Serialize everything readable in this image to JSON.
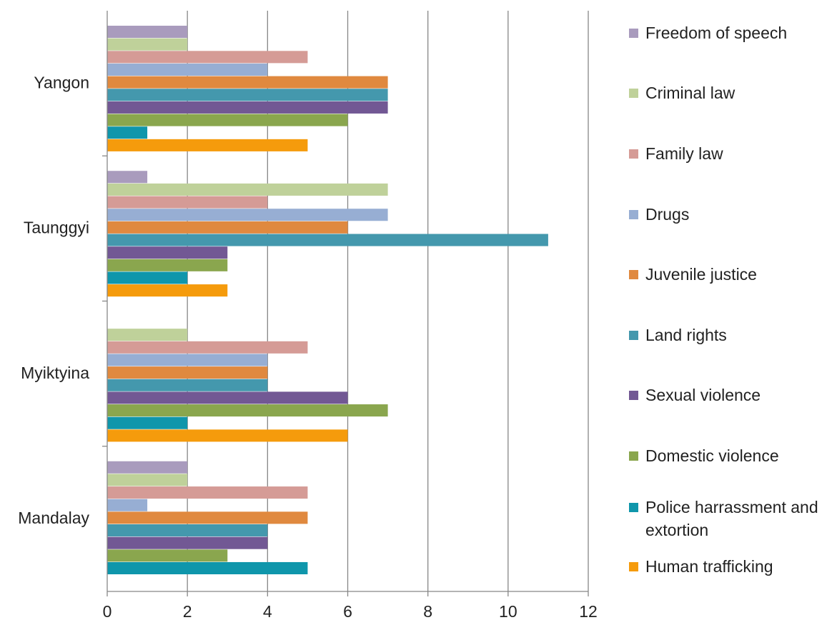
{
  "chart_data": {
    "type": "bar",
    "orientation": "horizontal",
    "title": "",
    "xlabel": "",
    "ylabel": "",
    "xlim": [
      0,
      12
    ],
    "x_ticks": [
      "0",
      "2",
      "4",
      "6",
      "8",
      "10",
      "12"
    ],
    "grid": "vertical",
    "legend_position": "right",
    "categories": [
      "Yangon",
      "Taunggyi",
      "Myiktyina",
      "Mandalay"
    ],
    "series": [
      {
        "name": "Freedom of speech",
        "color": "#a99bbd",
        "values": [
          2,
          1,
          0,
          2
        ]
      },
      {
        "name": "Criminal law",
        "color": "#bfd19a",
        "values": [
          2,
          7,
          2,
          2
        ]
      },
      {
        "name": "Family law",
        "color": "#d59b96",
        "values": [
          5,
          4,
          5,
          5
        ]
      },
      {
        "name": "Drugs",
        "color": "#97aed3",
        "values": [
          4,
          7,
          4,
          1
        ]
      },
      {
        "name": "Juvenile justice",
        "color": "#e0893f",
        "values": [
          7,
          6,
          4,
          5
        ]
      },
      {
        "name": "Land rights",
        "color": "#4498ad",
        "values": [
          7,
          11,
          4,
          4
        ]
      },
      {
        "name": "Sexual violence",
        "color": "#725894",
        "values": [
          7,
          3,
          6,
          4
        ]
      },
      {
        "name": "Domestic violence",
        "color": "#8aa64e",
        "values": [
          6,
          3,
          7,
          3
        ]
      },
      {
        "name": "Police harrassment and extortion",
        "color": "#0f96ab",
        "values": [
          1,
          2,
          2,
          5
        ]
      },
      {
        "name": "Human trafficking",
        "color": "#f59b0c",
        "values": [
          5,
          3,
          6,
          0
        ]
      }
    ]
  }
}
